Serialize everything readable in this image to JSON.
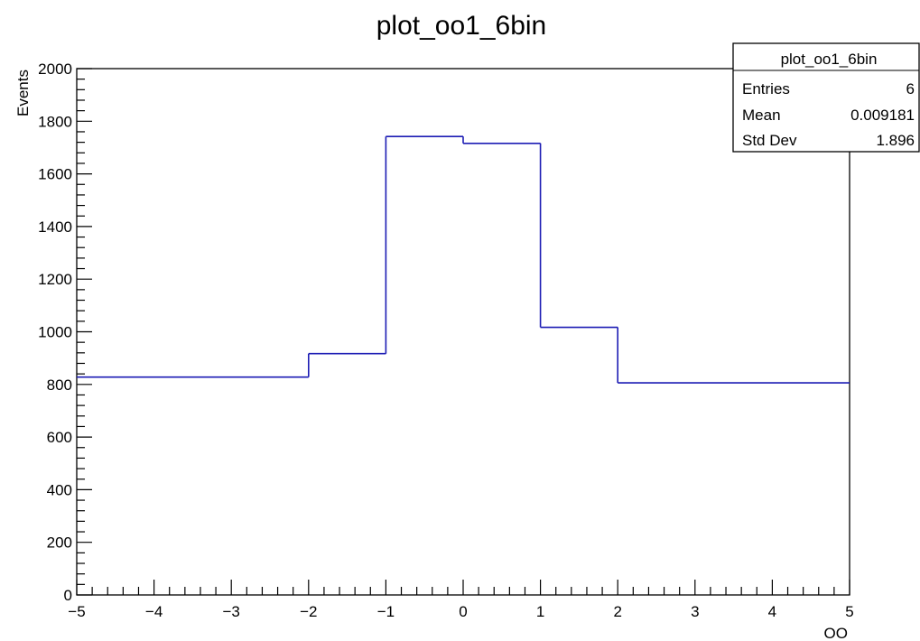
{
  "chart_data": {
    "type": "histogram",
    "title": "plot_oo1_6bin",
    "xlabel": "OO",
    "ylabel": "Events",
    "xlim": [
      -5,
      5
    ],
    "ylim": [
      0,
      2000
    ],
    "bin_edges": [
      -5,
      -2,
      -1,
      0,
      1,
      2,
      5
    ],
    "values": [
      828,
      917,
      1742,
      1716,
      1017,
      806
    ],
    "x_ticks": [
      "−5",
      "−4",
      "−3",
      "−2",
      "−1",
      "0",
      "1",
      "2",
      "3",
      "4",
      "5"
    ],
    "y_ticks": [
      "0",
      "200",
      "400",
      "600",
      "800",
      "1000",
      "1200",
      "1400",
      "1600",
      "1800",
      "2000"
    ],
    "line_color": "#1c1cb4",
    "grid": false
  },
  "stats_box": {
    "title": "plot_oo1_6bin",
    "rows": [
      {
        "label": "Entries",
        "value": "6"
      },
      {
        "label": "Mean",
        "value": "0.009181"
      },
      {
        "label": "Std Dev",
        "value": "1.896"
      }
    ]
  }
}
